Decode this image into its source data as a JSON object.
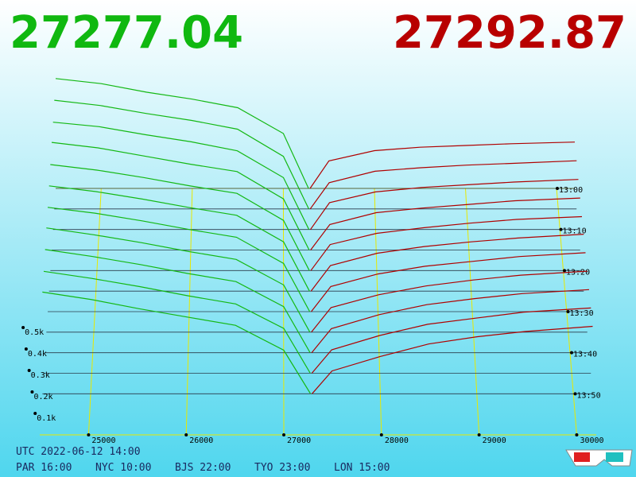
{
  "header": {
    "bid": "27277.04",
    "ask": "27292.87"
  },
  "chart_data": {
    "type": "depth3d",
    "bid_color": "#14b814",
    "ask_color": "#b00000",
    "xlim": [
      24500,
      30200
    ],
    "xticks": [
      25000,
      26000,
      27000,
      28000,
      29000,
      30000
    ],
    "zlim": [
      0,
      700
    ],
    "zticks": [
      {
        "value": 100,
        "label": "0.1k"
      },
      {
        "value": 200,
        "label": "0.2k"
      },
      {
        "value": 300,
        "label": "0.3k"
      },
      {
        "value": 400,
        "label": "0.4k"
      },
      {
        "value": 500,
        "label": "0.5k"
      }
    ],
    "tlim": [
      0,
      60
    ],
    "tticks": [
      {
        "value": 0,
        "label": "13:00"
      },
      {
        "value": 10,
        "label": "13:10"
      },
      {
        "value": 20,
        "label": "13:20"
      },
      {
        "value": 30,
        "label": "13:30"
      },
      {
        "value": 40,
        "label": "13:40"
      },
      {
        "value": 50,
        "label": "13:50"
      }
    ],
    "bid_prices": [
      24500,
      25000,
      25500,
      26000,
      26500,
      27000,
      27277
    ],
    "ask_prices": [
      27293,
      27500,
      28000,
      28500,
      29000,
      29500,
      30200
    ],
    "snapshots": [
      {
        "minute": 0,
        "bids": [
          640,
          610,
          560,
          520,
          470,
          320,
          0
        ],
        "asks": [
          0,
          160,
          220,
          240,
          250,
          260,
          270
        ]
      },
      {
        "minute": 5,
        "bids": [
          620,
          590,
          545,
          505,
          455,
          300,
          0
        ],
        "asks": [
          0,
          150,
          215,
          235,
          250,
          260,
          275
        ]
      },
      {
        "minute": 10,
        "bids": [
          600,
          575,
          530,
          490,
          440,
          290,
          0
        ],
        "asks": [
          0,
          150,
          210,
          235,
          250,
          265,
          280
        ]
      },
      {
        "minute": 15,
        "bids": [
          590,
          560,
          515,
          470,
          430,
          280,
          0
        ],
        "asks": [
          0,
          140,
          205,
          230,
          250,
          270,
          285
        ]
      },
      {
        "minute": 20,
        "bids": [
          570,
          540,
          500,
          455,
          415,
          270,
          0
        ],
        "asks": [
          0,
          140,
          200,
          230,
          255,
          275,
          290
        ]
      },
      {
        "minute": 25,
        "bids": [
          555,
          525,
          485,
          440,
          400,
          260,
          0
        ],
        "asks": [
          0,
          135,
          200,
          235,
          260,
          280,
          300
        ]
      },
      {
        "minute": 30,
        "bids": [
          540,
          510,
          470,
          425,
          385,
          250,
          0
        ],
        "asks": [
          0,
          130,
          195,
          235,
          260,
          285,
          305
        ]
      },
      {
        "minute": 35,
        "bids": [
          530,
          495,
          455,
          410,
          370,
          240,
          0
        ],
        "asks": [
          0,
          125,
          190,
          235,
          265,
          290,
          310
        ]
      },
      {
        "minute": 40,
        "bids": [
          515,
          480,
          440,
          395,
          355,
          230,
          0
        ],
        "asks": [
          0,
          120,
          190,
          240,
          270,
          295,
          315
        ]
      },
      {
        "minute": 45,
        "bids": [
          500,
          465,
          425,
          380,
          340,
          220,
          0
        ],
        "asks": [
          0,
          115,
          185,
          240,
          270,
          300,
          320
        ]
      },
      {
        "minute": 50,
        "bids": [
          490,
          455,
          410,
          370,
          330,
          210,
          0
        ],
        "asks": [
          0,
          110,
          180,
          240,
          275,
          300,
          325
        ]
      }
    ]
  },
  "footer": {
    "utc": "UTC 2022-06-12 14:00",
    "cities": [
      "PAR 16:00",
      "NYC 10:00",
      "BJS 22:00",
      "TYO 23:00",
      "LON 15:00"
    ]
  }
}
